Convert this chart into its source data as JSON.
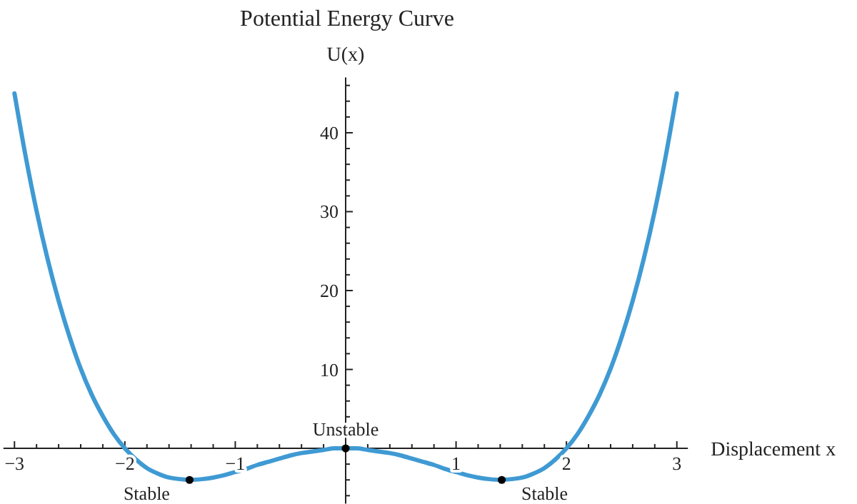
{
  "chart_data": {
    "type": "line",
    "title": "Potential Energy Curve",
    "xlabel": "Displacement x",
    "ylabel": "U(x)",
    "xlim": [
      -3.1,
      3.1
    ],
    "ylim": [
      -7,
      47
    ],
    "xticks": [
      {
        "value": -3,
        "label": "−3"
      },
      {
        "value": -2.8,
        "label": null
      },
      {
        "value": -2.6,
        "label": null
      },
      {
        "value": -2.4,
        "label": null
      },
      {
        "value": -2.2,
        "label": null
      },
      {
        "value": -2,
        "label": "−2"
      },
      {
        "value": -1.8,
        "label": null
      },
      {
        "value": -1.6,
        "label": null
      },
      {
        "value": -1.4,
        "label": null
      },
      {
        "value": -1.2,
        "label": null
      },
      {
        "value": -1,
        "label": "−1"
      },
      {
        "value": -0.8,
        "label": null
      },
      {
        "value": -0.6,
        "label": null
      },
      {
        "value": -0.4,
        "label": null
      },
      {
        "value": -0.2,
        "label": null
      },
      {
        "value": 0.2,
        "label": null
      },
      {
        "value": 0.4,
        "label": null
      },
      {
        "value": 0.6,
        "label": null
      },
      {
        "value": 0.8,
        "label": null
      },
      1,
      {
        "value": 1.2,
        "label": null
      },
      {
        "value": 1.4,
        "label": null
      },
      {
        "value": 1.6,
        "label": null
      },
      {
        "value": 1.8,
        "label": null
      },
      2,
      {
        "value": 2.2,
        "label": null
      },
      {
        "value": 2.4,
        "label": null
      },
      {
        "value": 2.6,
        "label": null
      },
      {
        "value": 2.8,
        "label": null
      },
      3
    ],
    "yticks": [
      {
        "value": -6,
        "label": null
      },
      {
        "value": -4,
        "label": null
      },
      {
        "value": -2,
        "label": null
      },
      {
        "value": 2,
        "label": null
      },
      {
        "value": 4,
        "label": null
      },
      {
        "value": 6,
        "label": null
      },
      {
        "value": 8,
        "label": null
      },
      10,
      {
        "value": 12,
        "label": null
      },
      {
        "value": 14,
        "label": null
      },
      {
        "value": 16,
        "label": null
      },
      {
        "value": 18,
        "label": null
      },
      20,
      {
        "value": 22,
        "label": null
      },
      {
        "value": 24,
        "label": null
      },
      {
        "value": 26,
        "label": null
      },
      {
        "value": 28,
        "label": null
      },
      30,
      {
        "value": 32,
        "label": null
      },
      {
        "value": 34,
        "label": null
      },
      {
        "value": 36,
        "label": null
      },
      {
        "value": 38,
        "label": null
      },
      40,
      {
        "value": 42,
        "label": null
      },
      {
        "value": 44,
        "label": null
      },
      {
        "value": 46,
        "label": null
      }
    ],
    "grid": false,
    "series": [
      {
        "type": "line",
        "color": "#3f9ad3",
        "line_style": "solid",
        "marker": "none",
        "x": [
          -3,
          -2.9,
          -2.8,
          -2.7,
          -2.6,
          -2.5,
          -2.4,
          -2.3,
          -2.2,
          -2.1,
          -2,
          -1.9,
          -1.8,
          -1.7,
          -1.6,
          -1.5,
          -1.4,
          -1.3,
          -1.2,
          -1.1,
          -1,
          -0.9,
          -0.8,
          -0.7,
          -0.6,
          -0.5,
          -0.4,
          -0.3,
          -0.2,
          -0.1,
          0,
          0.1,
          0.2,
          0.3,
          0.4,
          0.5,
          0.6,
          0.7,
          0.8,
          0.9,
          1,
          1.1,
          1.2,
          1.3,
          1.4,
          1.5,
          1.6,
          1.7,
          1.8,
          1.9,
          2,
          2.1,
          2.2,
          2.3,
          2.4,
          2.5,
          2.6,
          2.7,
          2.8,
          2.9,
          3
        ],
        "values": [
          45,
          37.1,
          30.1,
          24,
          18.7,
          14.1,
          10.1,
          6.8,
          4.1,
          1.8,
          0,
          -1.4,
          -2.5,
          -3.2,
          -3.7,
          -3.9,
          -4,
          -3.9,
          -3.7,
          -3.4,
          -3,
          -2.6,
          -2.1,
          -1.7,
          -1.3,
          -0.9,
          -0.6,
          -0.4,
          -0.2,
          0,
          0,
          0,
          -0.2,
          -0.4,
          -0.6,
          -0.9,
          -1.3,
          -1.7,
          -2.1,
          -2.6,
          -3,
          -3.4,
          -3.7,
          -3.9,
          -4,
          -3.9,
          -3.7,
          -3.2,
          -2.5,
          -1.4,
          0,
          1.8,
          4.1,
          6.8,
          10.1,
          14.1,
          18.7,
          24,
          30.1,
          37.1,
          45
        ]
      },
      {
        "type": "scatter",
        "color": "#000000",
        "marker": "circle",
        "x": [
          -1.414,
          0,
          1.414
        ],
        "values": [
          -4,
          0,
          -4
        ]
      }
    ],
    "annotations": [
      {
        "text": "Stable",
        "x": -1.414,
        "y": -4
      },
      {
        "text": "Unstable",
        "x": 0,
        "y": 0
      },
      {
        "text": "Stable",
        "x": 1.414,
        "y": -4
      }
    ]
  }
}
